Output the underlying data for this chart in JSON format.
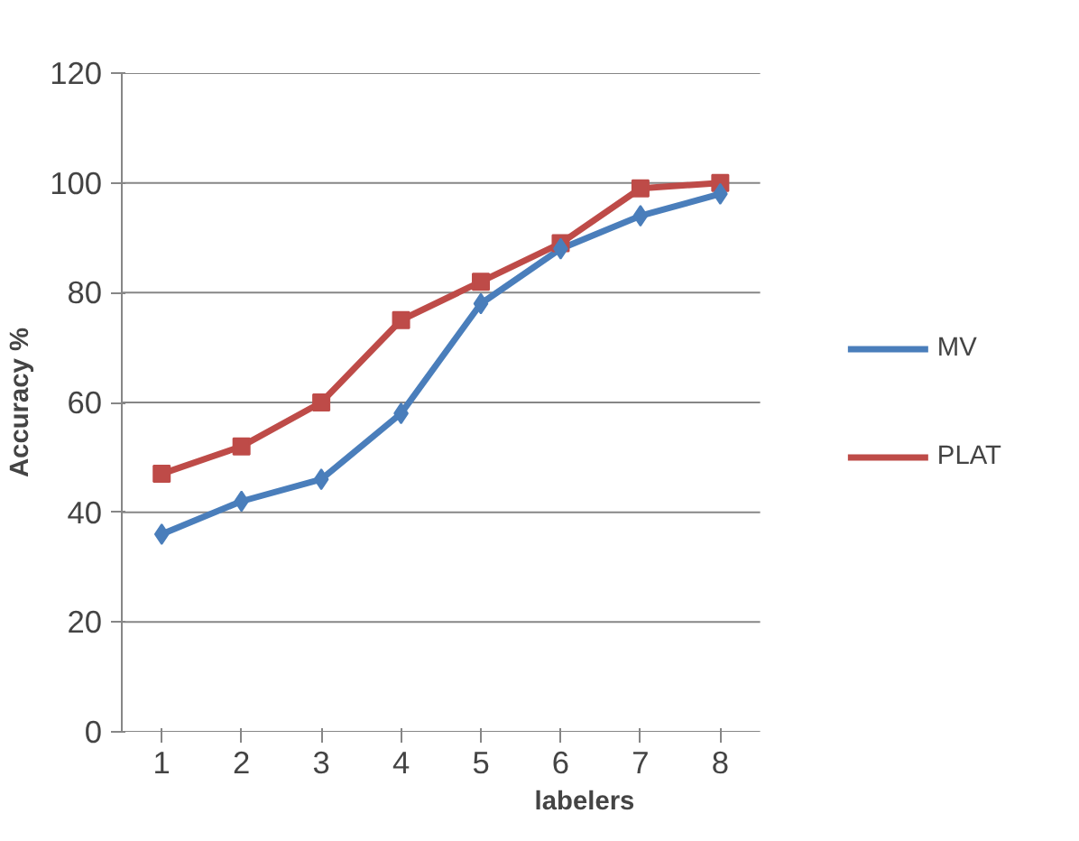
{
  "chart_data": {
    "type": "line",
    "xlabel": "labelers",
    "ylabel": "Accuracy %",
    "categories": [
      "1",
      "2",
      "3",
      "4",
      "5",
      "6",
      "7",
      "8"
    ],
    "series": [
      {
        "name": "MV",
        "color": "#4a7ebb",
        "values": [
          36,
          42,
          46,
          58,
          78,
          88,
          94,
          98
        ],
        "marker": "diamond"
      },
      {
        "name": "PLAT",
        "color": "#be4b48",
        "values": [
          47,
          52,
          60,
          75,
          82,
          89,
          99,
          100
        ],
        "marker": "square"
      }
    ],
    "ylim": [
      0,
      120
    ],
    "yticks": [
      0,
      20,
      40,
      60,
      80,
      100,
      120
    ],
    "grid": "y",
    "legend": "right",
    "line_style": "solid"
  }
}
